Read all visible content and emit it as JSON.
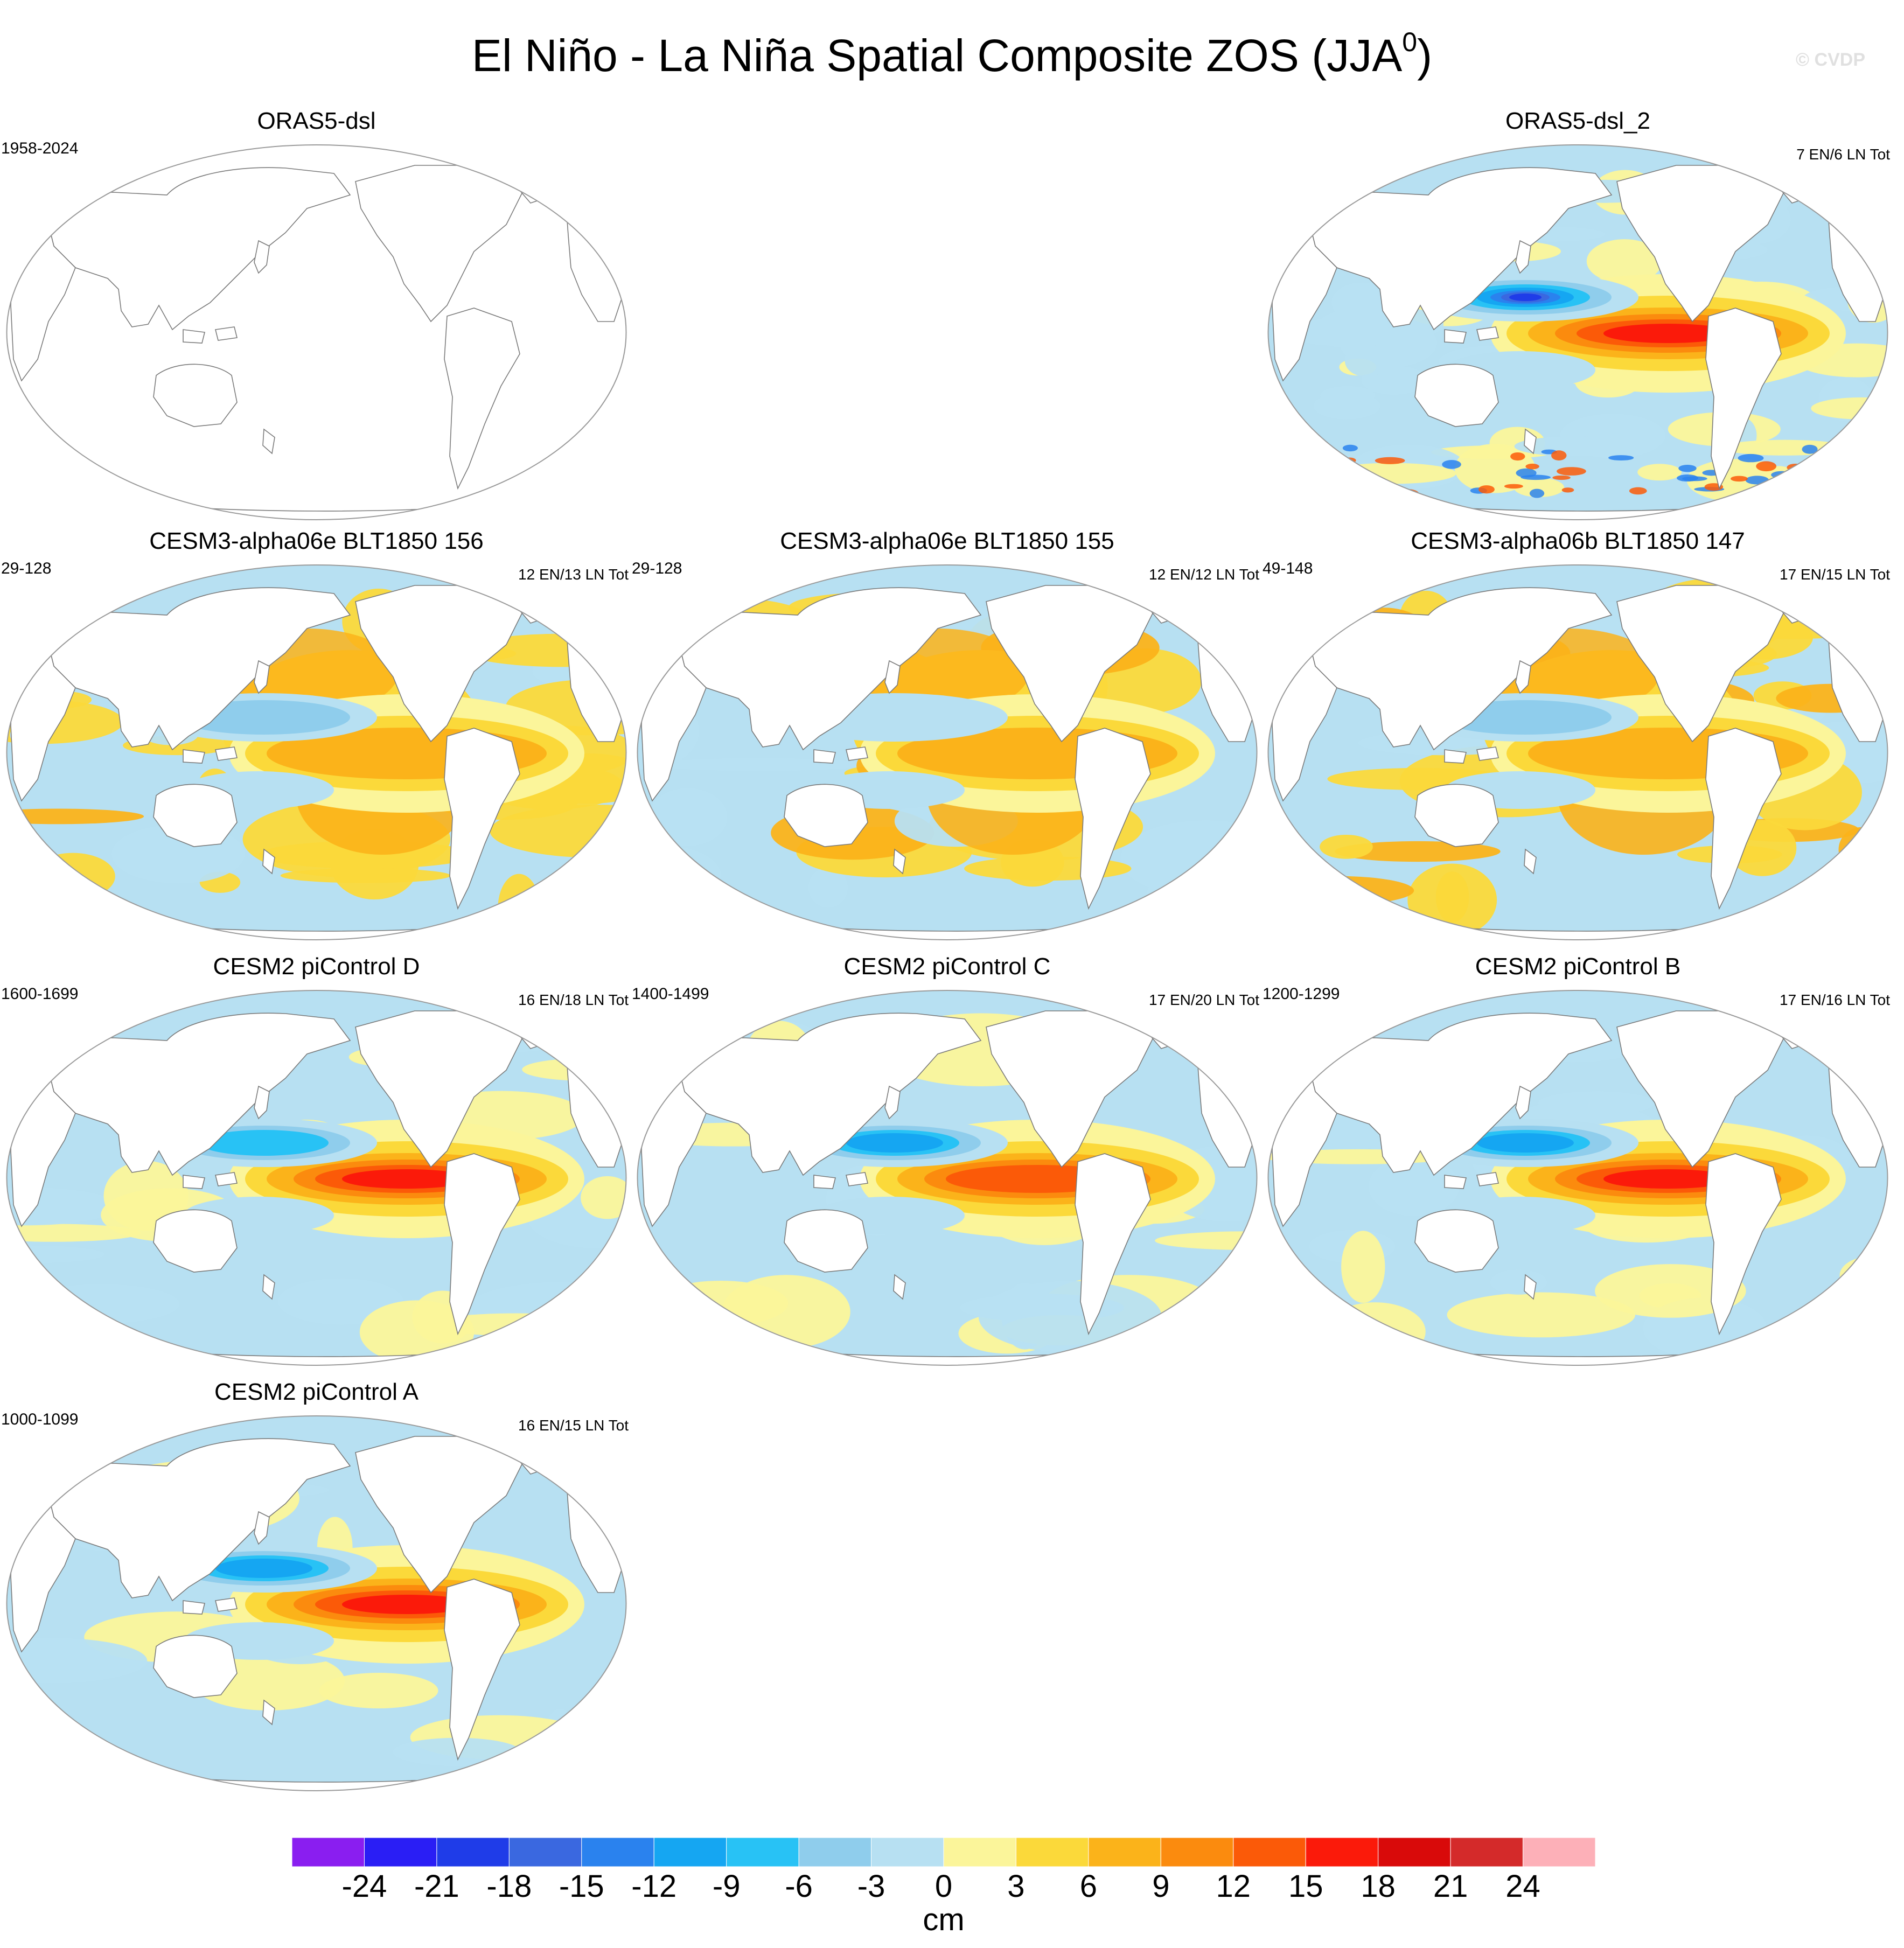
{
  "title_main": "El Niño - La Niña Spatial Composite ZOS (JJA",
  "title_sup": "0",
  "title_close": ")",
  "watermark": "© CVDP",
  "chart_data": {
    "type": "heatmap",
    "projection": "Robinson, Pacific-centered",
    "variable": "ZOS",
    "season": "JJA0",
    "units": "cm",
    "panels": [
      {
        "title": "ORAS5-dsl",
        "period": "1958-2024",
        "counts": "",
        "has_data": false
      },
      {
        "title": "ORAS5-dsl_2",
        "period": "",
        "counts": "7 EN/6 LN Tot",
        "has_data": true,
        "nino_max_cm": 20,
        "wp_min_cm": -22,
        "style": "obs"
      },
      {
        "title": "CESM3-alpha06e BLT1850 156",
        "period": "29-128",
        "counts": "12 EN/13 LN Tot",
        "has_data": true,
        "nino_max_cm": 11,
        "wp_min_cm": -7,
        "style": "cesm3"
      },
      {
        "title": "CESM3-alpha06e BLT1850 155",
        "period": "29-128",
        "counts": "12 EN/12 LN Tot",
        "has_data": true,
        "nino_max_cm": 11,
        "wp_min_cm": -5,
        "style": "cesm3"
      },
      {
        "title": "CESM3-alpha06b BLT1850 147",
        "period": "49-148",
        "counts": "17 EN/15 LN Tot",
        "has_data": true,
        "nino_max_cm": 11,
        "wp_min_cm": -6,
        "style": "cesm3"
      },
      {
        "title": "CESM2 piControl D",
        "period": "1600-1699",
        "counts": "16 EN/18 LN Tot",
        "has_data": true,
        "nino_max_cm": 18,
        "wp_min_cm": -11,
        "style": "cesm2"
      },
      {
        "title": "CESM2 piControl C",
        "period": "1400-1499",
        "counts": "17 EN/20 LN Tot",
        "has_data": true,
        "nino_max_cm": 17,
        "wp_min_cm": -13,
        "style": "cesm2"
      },
      {
        "title": "CESM2 piControl B",
        "period": "1200-1299",
        "counts": "17 EN/16 LN Tot",
        "has_data": true,
        "nino_max_cm": 19,
        "wp_min_cm": -14,
        "style": "cesm2"
      },
      {
        "title": "CESM2 piControl A",
        "period": "1000-1099",
        "counts": "16 EN/15 LN Tot",
        "has_data": true,
        "nino_max_cm": 18,
        "wp_min_cm": -14,
        "style": "cesm2"
      }
    ],
    "colorbar": {
      "levels": [
        -24,
        -21,
        -18,
        -15,
        -12,
        -9,
        -6,
        -3,
        0,
        3,
        6,
        9,
        12,
        15,
        18,
        21,
        24
      ],
      "tick_labels": [
        "-24",
        "-21",
        "-18",
        "-15",
        "-12",
        "-9",
        "-6",
        "-3",
        "0",
        "3",
        "6",
        "9",
        "12",
        "15",
        "18",
        "21",
        "24"
      ],
      "colors": [
        "#8a1ef0",
        "#2a1ef5",
        "#1f3ce8",
        "#3a68e0",
        "#2a82ee",
        "#15a6f2",
        "#28c2f5",
        "#8fcdec",
        "#b7e0f2",
        "#fbf59a",
        "#fbd93a",
        "#fbb31a",
        "#fb8b0e",
        "#fb5a08",
        "#fb1a0a",
        "#d90a0a",
        "#d42a2a",
        "#fdb0b8"
      ],
      "label": "cm"
    }
  }
}
